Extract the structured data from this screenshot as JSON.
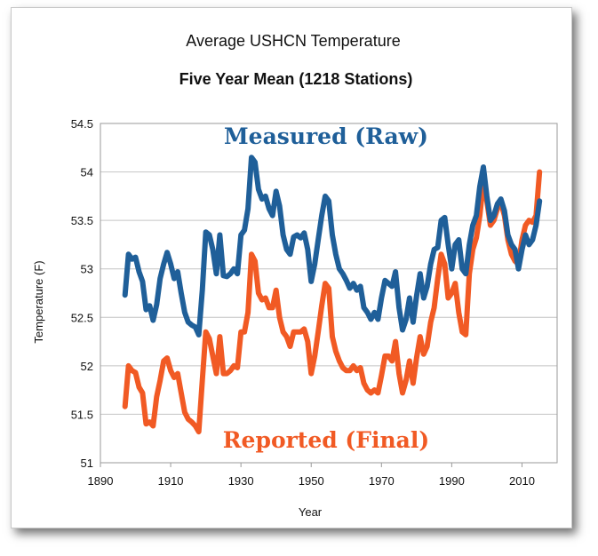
{
  "chart_data": {
    "type": "line",
    "title": "Average USHCN Temperature",
    "subtitle": "Five Year Mean (1218 Stations)",
    "xlabel": "Year",
    "ylabel": "Temperature (F)",
    "xlim": [
      1890,
      2020
    ],
    "ylim": [
      51,
      54.5
    ],
    "x_ticks": [
      "1890",
      "1910",
      "1930",
      "1950",
      "1970",
      "1990",
      "2010"
    ],
    "y_ticks": [
      "51",
      "51.5",
      "52",
      "52.5",
      "53",
      "53.5",
      "54",
      "54.5"
    ],
    "grid": "horizontal",
    "series": [
      {
        "name": "Measured (Raw)",
        "color": "#1f5f99",
        "x": [
          1897,
          1898,
          1899,
          1900,
          1901,
          1902,
          1903,
          1904,
          1905,
          1906,
          1907,
          1908,
          1909,
          1910,
          1911,
          1912,
          1913,
          1914,
          1915,
          1916,
          1917,
          1918,
          1919,
          1920,
          1921,
          1922,
          1923,
          1924,
          1925,
          1926,
          1927,
          1928,
          1929,
          1930,
          1931,
          1932,
          1933,
          1934,
          1935,
          1936,
          1937,
          1938,
          1939,
          1940,
          1941,
          1942,
          1943,
          1944,
          1945,
          1946,
          1947,
          1948,
          1949,
          1950,
          1951,
          1952,
          1953,
          1954,
          1955,
          1956,
          1957,
          1958,
          1959,
          1960,
          1961,
          1962,
          1963,
          1964,
          1965,
          1966,
          1967,
          1968,
          1969,
          1970,
          1971,
          1972,
          1973,
          1974,
          1975,
          1976,
          1977,
          1978,
          1979,
          1980,
          1981,
          1982,
          1983,
          1984,
          1985,
          1986,
          1987,
          1988,
          1989,
          1990,
          1991,
          1992,
          1993,
          1994,
          1995,
          1996,
          1997,
          1998,
          1999,
          2000,
          2001,
          2002,
          2003,
          2004,
          2005,
          2006,
          2007,
          2008,
          2009,
          2010,
          2011,
          2012,
          2013,
          2014,
          2015
        ],
        "values": [
          52.73,
          53.15,
          53.1,
          53.12,
          52.97,
          52.87,
          52.58,
          52.62,
          52.47,
          52.63,
          52.9,
          53.05,
          53.17,
          53.05,
          52.9,
          52.97,
          52.75,
          52.55,
          52.45,
          52.42,
          52.4,
          52.32,
          52.78,
          53.38,
          53.35,
          53.2,
          52.95,
          53.35,
          52.93,
          52.92,
          52.95,
          53.0,
          52.95,
          53.35,
          53.4,
          53.62,
          54.15,
          54.1,
          53.82,
          53.72,
          53.75,
          53.62,
          53.55,
          53.8,
          53.65,
          53.35,
          53.2,
          53.15,
          53.33,
          53.35,
          53.32,
          53.37,
          53.2,
          52.87,
          53.05,
          53.3,
          53.55,
          53.75,
          53.7,
          53.35,
          53.15,
          53.0,
          52.95,
          52.88,
          52.8,
          52.85,
          52.78,
          52.82,
          52.6,
          52.55,
          52.48,
          52.55,
          52.48,
          52.7,
          52.88,
          52.85,
          52.82,
          52.97,
          52.6,
          52.37,
          52.48,
          52.7,
          52.45,
          52.72,
          52.95,
          52.7,
          52.82,
          53.05,
          53.2,
          53.22,
          53.5,
          53.53,
          53.25,
          53.0,
          53.25,
          53.3,
          53.0,
          52.95,
          53.25,
          53.45,
          53.55,
          53.85,
          54.05,
          53.75,
          53.5,
          53.55,
          53.67,
          53.72,
          53.6,
          53.35,
          53.25,
          53.2,
          53.0,
          53.2,
          53.35,
          53.25,
          53.3,
          53.45,
          53.7
        ]
      },
      {
        "name": "Reported (Final)",
        "color": "#f15a24",
        "x": [
          1897,
          1898,
          1899,
          1900,
          1901,
          1902,
          1903,
          1904,
          1905,
          1906,
          1907,
          1908,
          1909,
          1910,
          1911,
          1912,
          1913,
          1914,
          1915,
          1916,
          1917,
          1918,
          1919,
          1920,
          1921,
          1922,
          1923,
          1924,
          1925,
          1926,
          1927,
          1928,
          1929,
          1930,
          1931,
          1932,
          1933,
          1934,
          1935,
          1936,
          1937,
          1938,
          1939,
          1940,
          1941,
          1942,
          1943,
          1944,
          1945,
          1946,
          1947,
          1948,
          1949,
          1950,
          1951,
          1952,
          1953,
          1954,
          1955,
          1956,
          1957,
          1958,
          1959,
          1960,
          1961,
          1962,
          1963,
          1964,
          1965,
          1966,
          1967,
          1968,
          1969,
          1970,
          1971,
          1972,
          1973,
          1974,
          1975,
          1976,
          1977,
          1978,
          1979,
          1980,
          1981,
          1982,
          1983,
          1984,
          1985,
          1986,
          1987,
          1988,
          1989,
          1990,
          1991,
          1992,
          1993,
          1994,
          1995,
          1996,
          1997,
          1998,
          1999,
          2000,
          2001,
          2002,
          2003,
          2004,
          2005,
          2006,
          2007,
          2008,
          2009,
          2010,
          2011,
          2012,
          2013,
          2014,
          2015
        ],
        "values": [
          51.58,
          52.0,
          51.95,
          51.93,
          51.78,
          51.72,
          51.4,
          51.42,
          51.38,
          51.68,
          51.85,
          52.05,
          52.08,
          51.95,
          51.88,
          51.92,
          51.72,
          51.52,
          51.45,
          51.42,
          51.38,
          51.32,
          51.85,
          52.35,
          52.28,
          52.1,
          51.92,
          52.3,
          51.92,
          51.92,
          51.95,
          52.0,
          51.98,
          52.35,
          52.35,
          52.55,
          53.15,
          53.08,
          52.75,
          52.68,
          52.7,
          52.6,
          52.6,
          52.78,
          52.5,
          52.35,
          52.3,
          52.2,
          52.35,
          52.35,
          52.35,
          52.38,
          52.25,
          51.92,
          52.1,
          52.35,
          52.62,
          52.85,
          52.8,
          52.3,
          52.15,
          52.05,
          51.98,
          51.95,
          51.95,
          52.0,
          51.95,
          51.98,
          51.82,
          51.75,
          51.72,
          51.75,
          51.72,
          51.9,
          52.1,
          52.1,
          52.05,
          52.25,
          51.92,
          51.72,
          51.85,
          52.05,
          51.82,
          52.08,
          52.3,
          52.12,
          52.2,
          52.45,
          52.6,
          52.9,
          53.15,
          53.05,
          52.7,
          52.75,
          52.85,
          52.55,
          52.35,
          52.32,
          52.95,
          53.2,
          53.32,
          53.55,
          53.9,
          53.7,
          53.45,
          53.5,
          53.62,
          53.68,
          53.55,
          53.3,
          53.15,
          53.08,
          53.05,
          53.3,
          53.45,
          53.5,
          53.48,
          53.55,
          54.0
        ]
      }
    ],
    "annotations": [
      {
        "text": "Measured (Raw)",
        "color": "#1f5f99"
      },
      {
        "text": "Reported (Final)",
        "color": "#f15a24"
      }
    ]
  }
}
